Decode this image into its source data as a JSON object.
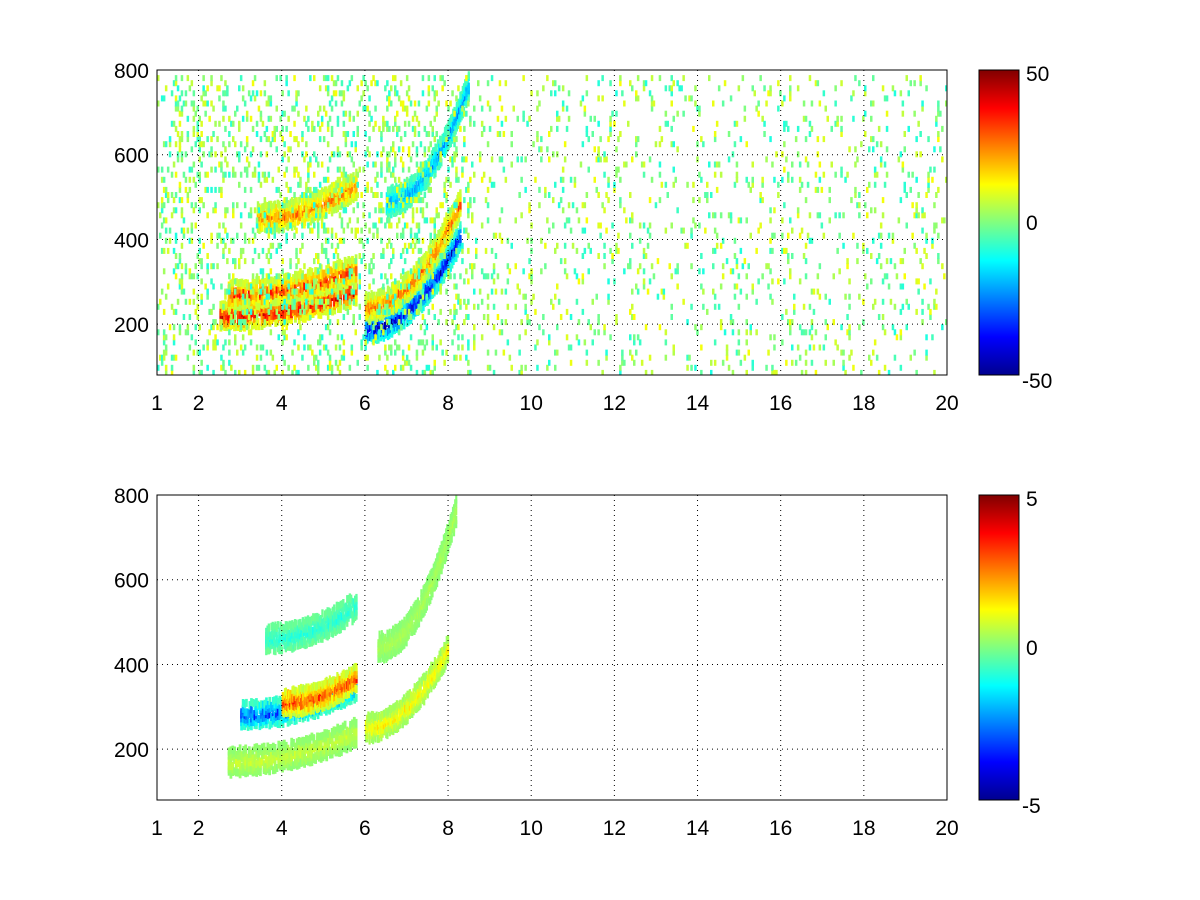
{
  "figure": {
    "background": "#ffffff",
    "colormap": "jet",
    "grid_color": "#000000"
  },
  "chart_data": [
    {
      "type": "heatmap",
      "title": "",
      "xlabel": "",
      "ylabel": "",
      "xlim": [
        1,
        20
      ],
      "ylim": [
        80,
        800
      ],
      "x_ticks": [
        1,
        2,
        4,
        6,
        8,
        10,
        12,
        14,
        16,
        18,
        20
      ],
      "x_tick_labels": [
        "1",
        "2",
        "4",
        "6",
        "8",
        "10",
        "12",
        "14",
        "16",
        "18",
        "20"
      ],
      "y_ticks": [
        200,
        400,
        600,
        800
      ],
      "y_tick_labels": [
        "200",
        "400",
        "600",
        "800"
      ],
      "grid": true,
      "colorbar": {
        "min": -50,
        "max": 50,
        "ticks": [
          50,
          0,
          -50
        ],
        "tick_labels": [
          "50",
          "0",
          "-50"
        ]
      },
      "features": [
        {
          "x_range": [
            2.5,
            5.8
          ],
          "y_at_start": 230,
          "y_at_end": 290,
          "value": 42
        },
        {
          "x_range": [
            2.7,
            5.8
          ],
          "y_at_start": 280,
          "y_at_end": 340,
          "value": 35
        },
        {
          "x_range": [
            3.4,
            5.8
          ],
          "y_at_start": 460,
          "y_at_end": 540,
          "value": 28
        },
        {
          "x_range": [
            6.0,
            8.3
          ],
          "y_at_start": 200,
          "y_at_end": 420,
          "value": -45
        },
        {
          "x_range": [
            6.0,
            8.3
          ],
          "y_at_start": 250,
          "y_at_end": 500,
          "value": 30
        },
        {
          "x_range": [
            6.5,
            8.5
          ],
          "y_at_start": 500,
          "y_at_end": 780,
          "value": -25
        }
      ]
    },
    {
      "type": "heatmap",
      "title": "",
      "xlabel": "",
      "ylabel": "",
      "xlim": [
        1,
        20
      ],
      "ylim": [
        80,
        800
      ],
      "x_ticks": [
        1,
        2,
        4,
        6,
        8,
        10,
        12,
        14,
        16,
        18,
        20
      ],
      "x_tick_labels": [
        "1",
        "2",
        "4",
        "6",
        "8",
        "10",
        "12",
        "14",
        "16",
        "18",
        "20"
      ],
      "y_ticks": [
        200,
        400,
        600,
        800
      ],
      "y_tick_labels": [
        "200",
        "400",
        "600",
        "800"
      ],
      "grid": true,
      "colorbar": {
        "min": -5,
        "max": 5,
        "ticks": [
          5,
          0,
          -5
        ],
        "tick_labels": [
          "5",
          "0",
          "-5"
        ]
      },
      "features": [
        {
          "x_range": [
            2.7,
            5.8
          ],
          "y_at_start": 180,
          "y_at_end": 250,
          "value": 0.8
        },
        {
          "x_range": [
            3.0,
            5.8
          ],
          "y_at_start": 290,
          "y_at_end": 360,
          "value": -3.5
        },
        {
          "x_range": [
            4.0,
            5.8
          ],
          "y_at_start": 320,
          "y_at_end": 380,
          "value": 3.5
        },
        {
          "x_range": [
            3.6,
            5.8
          ],
          "y_at_start": 470,
          "y_at_end": 550,
          "value": -1
        },
        {
          "x_range": [
            6.0,
            8.0
          ],
          "y_at_start": 260,
          "y_at_end": 450,
          "value": 1.5
        },
        {
          "x_range": [
            6.3,
            8.2
          ],
          "y_at_start": 450,
          "y_at_end": 780,
          "value": 0.5
        }
      ]
    }
  ]
}
